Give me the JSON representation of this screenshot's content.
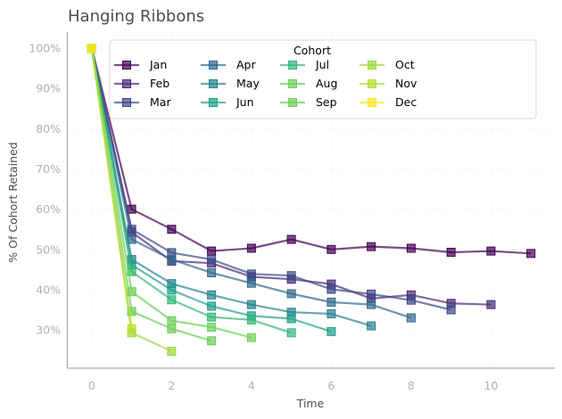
{
  "chart_data": {
    "type": "line",
    "title": "Hanging Ribbons",
    "xlabel": "Time",
    "ylabel": "% Of Cohort Retained",
    "xlim": [
      -0.6,
      11.6
    ],
    "ylim": [
      20.5,
      104
    ],
    "xticks": [
      0,
      2,
      4,
      6,
      8,
      10
    ],
    "yticks": [
      30,
      40,
      50,
      60,
      70,
      80,
      90,
      100
    ],
    "ytick_format": "{v}%",
    "grid": true,
    "legend": {
      "title": "Cohort",
      "position": "top-right",
      "columns": 5
    },
    "series": [
      {
        "name": "Jan",
        "color": "#440154",
        "values": [
          100,
          60.0,
          55.0,
          49.6,
          50.3,
          52.5,
          50.0,
          50.7,
          50.3,
          49.3,
          49.6,
          49.0
        ]
      },
      {
        "name": "Feb",
        "color": "#482878",
        "values": [
          100,
          54.3,
          47.1,
          46.6,
          43.2,
          42.6,
          41.4,
          37.8,
          38.7,
          36.6,
          36.3
        ]
      },
      {
        "name": "Mar",
        "color": "#3e4989",
        "values": [
          100,
          55.0,
          49.2,
          47.5,
          43.9,
          43.5,
          40.1,
          38.9,
          37.4,
          35.0
        ]
      },
      {
        "name": "Apr",
        "color": "#31688e",
        "values": [
          100,
          52.5,
          47.5,
          44.2,
          41.6,
          39.0,
          36.9,
          36.3,
          33.0
        ]
      },
      {
        "name": "May",
        "color": "#26828e",
        "values": [
          100,
          47.5,
          41.5,
          38.7,
          36.3,
          34.4,
          34.0,
          31.0
        ]
      },
      {
        "name": "Jun",
        "color": "#1f9e89",
        "values": [
          100,
          46.2,
          39.9,
          35.9,
          33.5,
          32.8,
          29.6
        ]
      },
      {
        "name": "Jul",
        "color": "#35b779",
        "values": [
          100,
          44.5,
          37.5,
          33.2,
          32.5,
          29.3
        ]
      },
      {
        "name": "Aug",
        "color": "#6ece58",
        "values": [
          100,
          39.5,
          32.3,
          30.7,
          28.1
        ]
      },
      {
        "name": "Sep",
        "color": "#6ccd5a",
        "values": [
          100,
          34.6,
          30.3,
          27.3
        ]
      },
      {
        "name": "Oct",
        "color": "#9fd83a",
        "values": [
          100,
          29.3,
          24.7
        ]
      },
      {
        "name": "Nov",
        "color": "#b5de2b",
        "values": [
          100,
          30.3
        ]
      },
      {
        "name": "Dec",
        "color": "#fde725",
        "values": [
          100
        ]
      }
    ]
  }
}
